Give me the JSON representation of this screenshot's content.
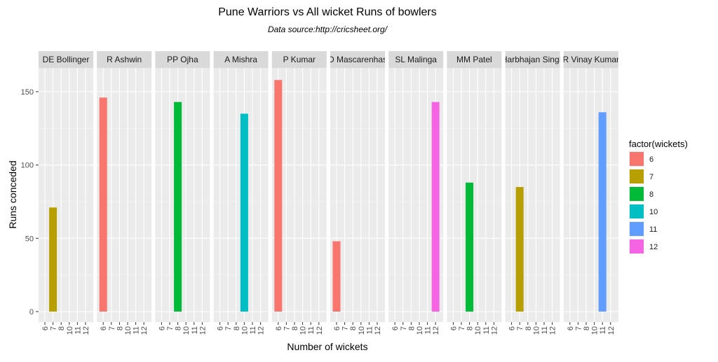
{
  "chart_data": {
    "type": "bar",
    "title": "Pune Warriors vs All wicket Runs of bowlers",
    "subtitle": "Data source:http://cricsheet.org/",
    "xlabel": "Number of wickets",
    "ylabel": "Runs conceded",
    "ylim": [
      0,
      160
    ],
    "yticks": [
      0,
      50,
      100,
      150
    ],
    "x_categories": [
      "6",
      "7",
      "8",
      "10",
      "11",
      "12"
    ],
    "legend": {
      "title": "factor(wickets)",
      "position": "right",
      "entries": [
        {
          "label": "6",
          "color": "#F8766D"
        },
        {
          "label": "7",
          "color": "#B79F00"
        },
        {
          "label": "8",
          "color": "#00BA38"
        },
        {
          "label": "10",
          "color": "#00BFC4"
        },
        {
          "label": "11",
          "color": "#619CFF"
        },
        {
          "label": "12",
          "color": "#F564E3"
        }
      ]
    },
    "facets": [
      {
        "label": "DE Bollinger",
        "wickets": "7",
        "runs": 71
      },
      {
        "label": "R Ashwin",
        "wickets": "6",
        "runs": 146
      },
      {
        "label": "PP Ojha",
        "wickets": "8",
        "runs": 143
      },
      {
        "label": "A Mishra",
        "wickets": "10",
        "runs": 135
      },
      {
        "label": "P Kumar",
        "wickets": "6",
        "runs": 158
      },
      {
        "label": "D Mascarenhas",
        "wickets": "6",
        "runs": 48
      },
      {
        "label": "SL Malinga",
        "wickets": "12",
        "runs": 143
      },
      {
        "label": "MM Patel",
        "wickets": "8",
        "runs": 88
      },
      {
        "label": "Harbhajan Singh",
        "wickets": "7",
        "runs": 85
      },
      {
        "label": "R Vinay Kumar",
        "wickets": "11",
        "runs": 136
      }
    ],
    "grid": true
  }
}
